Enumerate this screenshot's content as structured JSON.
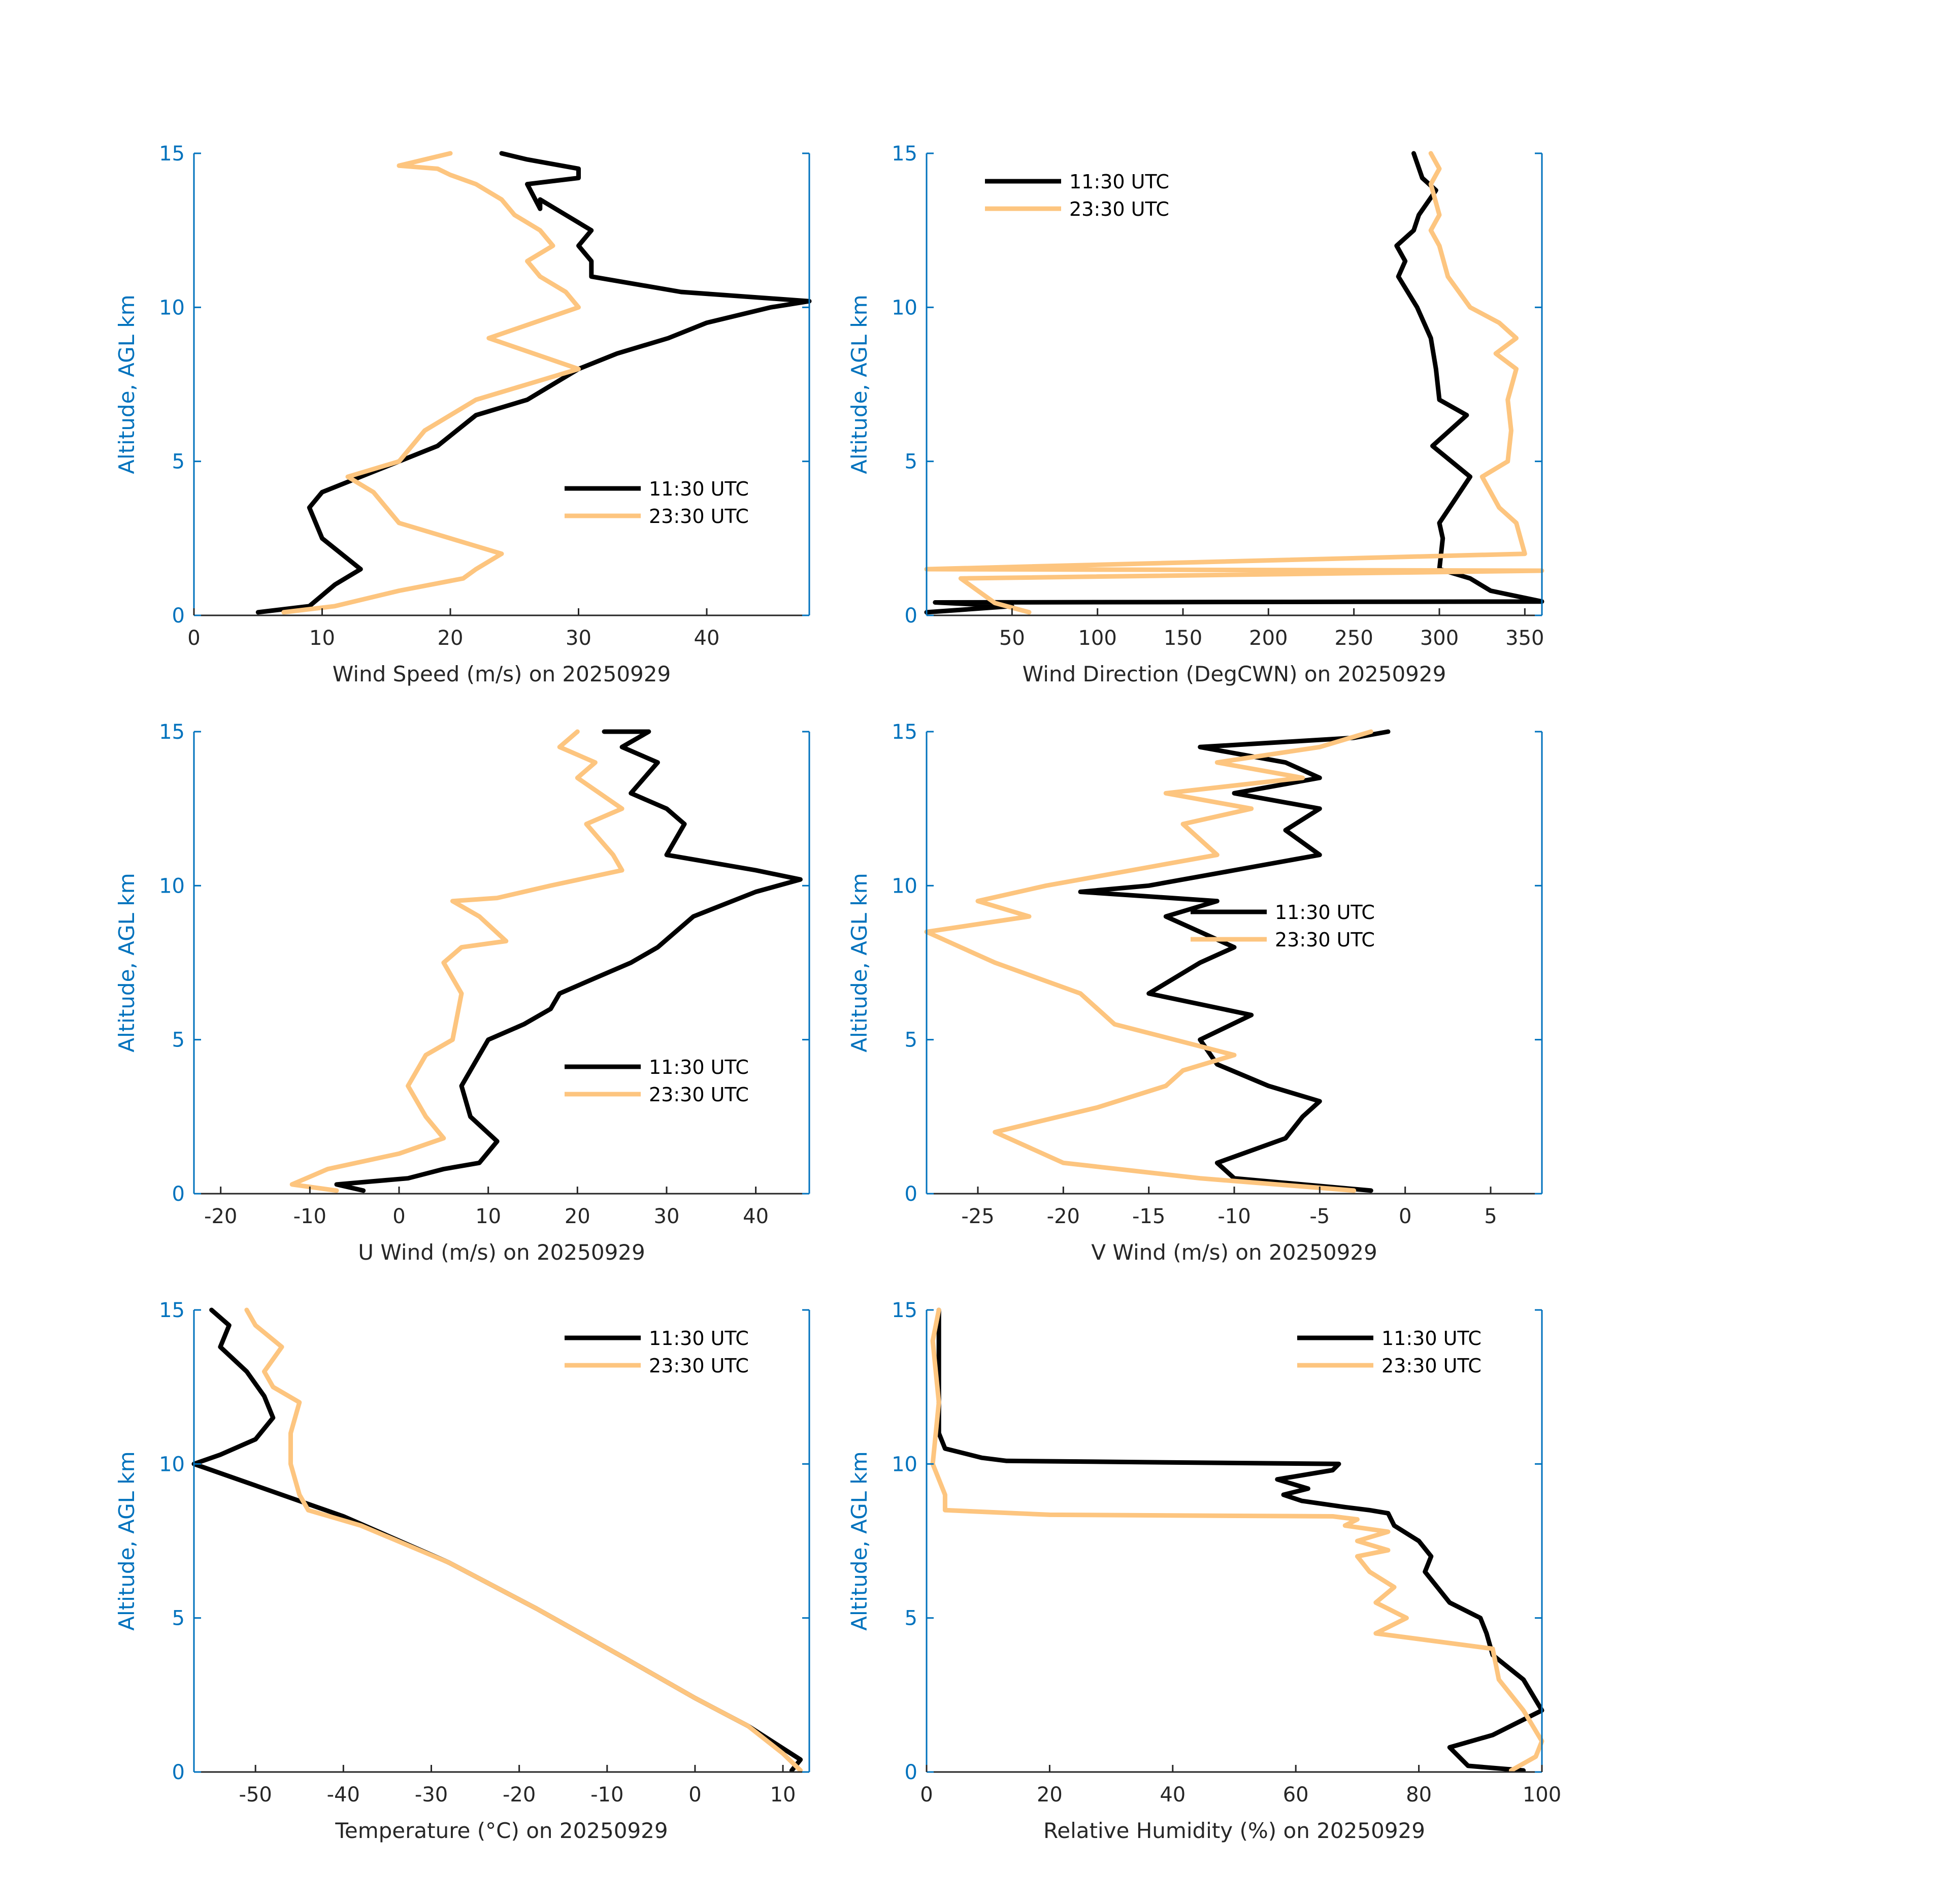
{
  "colors": {
    "primary": "#000000",
    "secondary": "#FDC57F",
    "axis": "#0072BD",
    "tick": "#262626"
  },
  "series_names": [
    "11:30 UTC",
    "23:30 UTC"
  ],
  "chart_data": [
    {
      "type": "line",
      "xlabel": "Wind Speed (m/s) on 20250929",
      "ylabel": "Altitude, AGL km",
      "xlim": [
        0,
        48
      ],
      "ylim": [
        0,
        15
      ],
      "xticks": [
        0,
        10,
        20,
        30,
        40
      ],
      "yticks": [
        0,
        5,
        10,
        15
      ],
      "legend": "lower-right",
      "series": [
        {
          "name": "11:30 UTC",
          "x": [
            5,
            9,
            11,
            13,
            10,
            9,
            10,
            13,
            16,
            19,
            22,
            26,
            30,
            33,
            37,
            40,
            45,
            48,
            38,
            31,
            31,
            30,
            31,
            29,
            27,
            27,
            26,
            30,
            30,
            26,
            24
          ],
          "y": [
            0.1,
            0.3,
            1.0,
            1.5,
            2.5,
            3.5,
            4.0,
            4.5,
            5.0,
            5.5,
            6.5,
            7.0,
            8.0,
            8.5,
            9.0,
            9.5,
            10.0,
            10.2,
            10.5,
            11.0,
            11.5,
            12.0,
            12.5,
            13.0,
            13.5,
            13.2,
            14.0,
            14.2,
            14.5,
            14.8,
            15.0
          ]
        },
        {
          "name": "23:30 UTC",
          "x": [
            7,
            11,
            16,
            21,
            22,
            24,
            20,
            16,
            14,
            12,
            16,
            18,
            22,
            26,
            30,
            23,
            30,
            29,
            27,
            26,
            28,
            27,
            25,
            24,
            22,
            20,
            19,
            16,
            20
          ],
          "y": [
            0.1,
            0.3,
            0.8,
            1.2,
            1.5,
            2.0,
            2.5,
            3.0,
            4.0,
            4.5,
            5.0,
            6.0,
            7.0,
            7.5,
            8.0,
            9.0,
            10.0,
            10.5,
            11.0,
            11.5,
            12.0,
            12.5,
            13.0,
            13.5,
            14.0,
            14.3,
            14.5,
            14.6,
            15.0
          ]
        }
      ]
    },
    {
      "type": "line",
      "xlabel": "Wind Direction (DegCWN) on 20250929",
      "ylabel": "Altitude, AGL km",
      "xlim": [
        0,
        360
      ],
      "ylim": [
        0,
        15
      ],
      "xticks": [
        50,
        100,
        150,
        200,
        250,
        300,
        350
      ],
      "yticks": [
        0,
        5,
        10,
        15
      ],
      "legend": "top-left",
      "series": [
        {
          "name": "11:30 UTC",
          "x": [
            0,
            50,
            5,
            360,
            330,
            318,
            300,
            302,
            300,
            306,
            318,
            296,
            316,
            300,
            298,
            295,
            287,
            276,
            280,
            275,
            285,
            288,
            298,
            290,
            285
          ],
          "y": [
            0.1,
            0.3,
            0.42,
            0.45,
            0.8,
            1.2,
            1.5,
            2.5,
            3.0,
            3.5,
            4.5,
            5.5,
            6.5,
            7.0,
            8.0,
            9.0,
            10.0,
            11.0,
            11.5,
            12.0,
            12.5,
            13.0,
            13.8,
            14.2,
            15.0
          ]
        },
        {
          "name": "23:30 UTC",
          "x": [
            60,
            40,
            30,
            20,
            360,
            0,
            350,
            345,
            335,
            325,
            340,
            342,
            340,
            345,
            333,
            345,
            335,
            318,
            305,
            300,
            295,
            300,
            295,
            300,
            295
          ],
          "y": [
            0.1,
            0.4,
            0.8,
            1.2,
            1.45,
            1.5,
            2.0,
            3.0,
            3.5,
            4.5,
            5.0,
            6.0,
            7.0,
            8.0,
            8.5,
            9.0,
            9.5,
            10.0,
            11.0,
            12.0,
            12.5,
            13.0,
            14.0,
            14.5,
            15.0
          ]
        }
      ]
    },
    {
      "type": "line",
      "xlabel": "U Wind (m/s) on 20250929",
      "ylabel": "Altitude, AGL km",
      "xlim": [
        -23,
        46
      ],
      "ylim": [
        0,
        15
      ],
      "xticks": [
        -20,
        -10,
        0,
        10,
        20,
        30,
        40
      ],
      "yticks": [
        0,
        5,
        10,
        15
      ],
      "legend": "lower-right",
      "series": [
        {
          "name": "11:30 UTC",
          "x": [
            -4,
            -7,
            1,
            5,
            9,
            11,
            8,
            7,
            9,
            10,
            14,
            17,
            18,
            22,
            26,
            29,
            33,
            40,
            45,
            40,
            30,
            32,
            30,
            26,
            29,
            25,
            28,
            23
          ],
          "y": [
            0.1,
            0.3,
            0.5,
            0.8,
            1.0,
            1.7,
            2.5,
            3.5,
            4.5,
            5.0,
            5.5,
            6.0,
            6.5,
            7.0,
            7.5,
            8.0,
            9.0,
            9.8,
            10.2,
            10.5,
            11.0,
            12.0,
            12.5,
            13.0,
            14.0,
            14.5,
            15.0,
            15.0
          ]
        },
        {
          "name": "23:30 UTC",
          "x": [
            -7,
            -12,
            -8,
            0,
            5,
            3,
            1,
            3,
            6,
            7,
            5,
            7,
            12,
            9,
            6,
            11,
            17,
            25,
            24,
            21,
            25,
            20,
            22,
            18,
            20
          ],
          "y": [
            0.1,
            0.3,
            0.8,
            1.3,
            1.8,
            2.5,
            3.5,
            4.5,
            5.0,
            6.5,
            7.5,
            8.0,
            8.2,
            9.0,
            9.5,
            9.6,
            10.0,
            10.5,
            11.0,
            12.0,
            12.5,
            13.5,
            14.0,
            14.5,
            15.0
          ]
        }
      ]
    },
    {
      "type": "line",
      "xlabel": "V Wind (m/s) on 20250929",
      "ylabel": "Altitude, AGL km",
      "xlim": [
        -28,
        8
      ],
      "ylim": [
        0,
        15
      ],
      "xticks": [
        -25,
        -20,
        -15,
        -10,
        -5,
        0,
        5
      ],
      "yticks": [
        0,
        5,
        10,
        15
      ],
      "legend": "right",
      "series": [
        {
          "name": "11:30 UTC",
          "x": [
            -2,
            -10,
            -11,
            -7,
            -6,
            -5,
            -8,
            -11,
            -12,
            -9,
            -15,
            -12,
            -10,
            -14,
            -11,
            -19,
            -15,
            -10,
            -5,
            -7,
            -5,
            -10,
            -5,
            -7,
            -12,
            -3,
            -1
          ],
          "y": [
            0.1,
            0.5,
            1.0,
            1.8,
            2.5,
            3.0,
            3.5,
            4.2,
            5.0,
            5.8,
            6.5,
            7.5,
            8.0,
            9.0,
            9.5,
            9.8,
            10.0,
            10.5,
            11.0,
            11.8,
            12.5,
            13.0,
            13.5,
            14.0,
            14.5,
            14.8,
            15.0
          ]
        },
        {
          "name": "23:30 UTC",
          "x": [
            -3,
            -12,
            -20,
            -22,
            -24,
            -18,
            -14,
            -13,
            -10,
            -17,
            -19,
            -24,
            -26,
            -28,
            -22,
            -25,
            -21,
            -16,
            -11,
            -13,
            -9,
            -14,
            -6,
            -11,
            -5,
            -2
          ],
          "y": [
            0.1,
            0.5,
            1.0,
            1.5,
            2.0,
            2.8,
            3.5,
            4.0,
            4.5,
            5.5,
            6.5,
            7.5,
            8.0,
            8.5,
            9.0,
            9.5,
            10.0,
            10.5,
            11.0,
            12.0,
            12.5,
            13.0,
            13.5,
            14.0,
            14.5,
            15.0
          ]
        }
      ]
    },
    {
      "type": "line",
      "xlabel": "Temperature (°C) on 20250929",
      "ylabel": "Altitude, AGL km",
      "xlim": [
        -57,
        13
      ],
      "ylim": [
        0,
        15
      ],
      "xticks": [
        -50,
        -40,
        -30,
        -20,
        -10,
        0,
        10
      ],
      "yticks": [
        0,
        5,
        10,
        15
      ],
      "legend": "top-right",
      "series": [
        {
          "name": "11:30 UTC",
          "x": [
            11,
            12,
            6,
            0,
            -8,
            -18,
            -28,
            -40,
            -50,
            -57,
            -54,
            -50,
            -48,
            -49,
            -51,
            -54,
            -53,
            -55
          ],
          "y": [
            0.05,
            0.4,
            1.5,
            2.4,
            3.7,
            5.3,
            6.8,
            8.3,
            9.3,
            10.0,
            10.3,
            10.8,
            11.5,
            12.2,
            13.0,
            13.8,
            14.5,
            15.0
          ]
        },
        {
          "name": "23:30 UTC",
          "x": [
            12,
            10,
            6,
            0,
            -8,
            -18,
            -28,
            -38,
            -44,
            -45,
            -46,
            -46,
            -45,
            -48,
            -49,
            -47,
            -50,
            -51
          ],
          "y": [
            0.05,
            0.6,
            1.5,
            2.4,
            3.7,
            5.3,
            6.8,
            8.0,
            8.5,
            9.0,
            10.0,
            11.0,
            12.0,
            12.5,
            13.0,
            13.8,
            14.5,
            15.0
          ]
        }
      ]
    },
    {
      "type": "line",
      "xlabel": "Relative Humidity (%) on 20250929",
      "ylabel": "Altitude, AGL km",
      "xlim": [
        0,
        100
      ],
      "ylim": [
        0,
        15
      ],
      "xticks": [
        0,
        20,
        40,
        60,
        80,
        100
      ],
      "yticks": [
        0,
        5,
        10,
        15
      ],
      "legend": "top-right",
      "series": [
        {
          "name": "11:30 UTC",
          "x": [
            97,
            88,
            85,
            92,
            100,
            97,
            92,
            91,
            90,
            85,
            83,
            81,
            82,
            80,
            76,
            75,
            72,
            68,
            61,
            58,
            62,
            57,
            66,
            67,
            13,
            9,
            3,
            2,
            2,
            2,
            2
          ],
          "y": [
            0.05,
            0.2,
            0.8,
            1.2,
            2.0,
            3.0,
            3.8,
            4.5,
            5.0,
            5.5,
            6.0,
            6.5,
            7.0,
            7.5,
            8.0,
            8.4,
            8.5,
            8.6,
            8.8,
            9.0,
            9.2,
            9.5,
            9.8,
            10.0,
            10.1,
            10.2,
            10.5,
            11.0,
            12.0,
            13.0,
            15.0
          ]
        },
        {
          "name": "23:30 UTC",
          "x": [
            95,
            99,
            100,
            97,
            93,
            92,
            73,
            78,
            73,
            76,
            72,
            70,
            75,
            70,
            75,
            68,
            70,
            66,
            20,
            3,
            3,
            1,
            2,
            1,
            2
          ],
          "y": [
            0.05,
            0.5,
            1.0,
            2.0,
            3.0,
            4.0,
            4.5,
            5.0,
            5.5,
            6.0,
            6.5,
            7.0,
            7.2,
            7.5,
            7.8,
            8.0,
            8.2,
            8.3,
            8.35,
            8.5,
            9.0,
            10.0,
            12.0,
            14.0,
            15.0
          ]
        }
      ]
    }
  ]
}
